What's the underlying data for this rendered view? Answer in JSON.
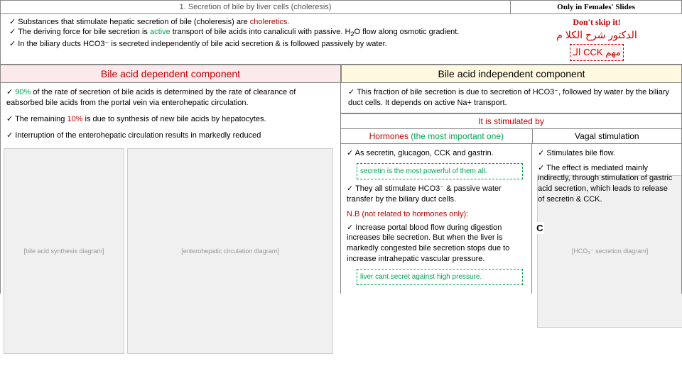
{
  "header": {
    "title": "1. Secretion of bile by liver cells (choleresis)",
    "females": "Only in Females' Slides"
  },
  "intro": {
    "b1a": "Substances that stimulate hepatic secretion of bile (choleresis) are ",
    "b1b": "choleretics.",
    "b2a": "The deriving force for bile secretion is ",
    "b2b": "active",
    "b2c": " transport of bile acids into canaliculi with passive. H",
    "b2d": "O  flow along osmotic gradient.",
    "b3": "In the biliary ducts  HCO3⁻ is secreted independently of bile acid secretion & is followed passively by water.",
    "dont_skip": "Don't skip it!",
    "arabic": "الدكتور شرح   الكلا    م",
    "cck": "الـ CCK مهم"
  },
  "comp": {
    "left": "Bile acid dependent component",
    "right": "Bile acid independent component"
  },
  "leftcol": {
    "b1a": "90%",
    "b1b": " of the rate of secretion of bile acids is determined by the rate of clearance of eabsorbed bile acids from the portal vein via enterohepatic circulation.",
    "b2a": "The remaining ",
    "b2b": "10%",
    "b2c": " is due to synthesis of new bile acids by hepatocytes.",
    "b3": "Interruption of the enterohepatic circulation results in markedly reduced",
    "img1_label": "[bile acid synthesis diagram]",
    "img2_label": "[enterohepatic circulation diagram]"
  },
  "rightcol": {
    "top": "This fraction of bile secretion is due to secretion of HCO3⁻, followed by water by the biliary duct cells. It depends on active Na+ transport.",
    "stimulated": "It is stimulated by",
    "horm_h1": "Hormones ",
    "horm_h2": "(the most important one)",
    "vagal_h": "Vagal stimulation",
    "horm_b1": "As secretin, glucagon, CCK and gastrin.",
    "horm_note1": "secretin is the most powerful of them all.",
    "horm_b2": "They all stimulate HCO3⁻ & passive water transfer by the biliary duct cells.",
    "nb": "N.B (not related to hormones only):",
    "horm_b3": "Increase portal blood flow during digestion increases bile secretion. But when the liver is markedly congested bile secretion stops due to increase intrahepatic vascular pressure.",
    "horm_note2": "liver cant secret against high pressure.",
    "vagal_b1": "Stimulates bile flow.",
    "vagal_b2": "The effect is mediated mainly indirectly, through stimulation of gastric acid secretion, which leads to release of secretin & CCK.",
    "vagal_img": "[HCO₃⁻ secretion diagram]",
    "cck_c": "C"
  }
}
